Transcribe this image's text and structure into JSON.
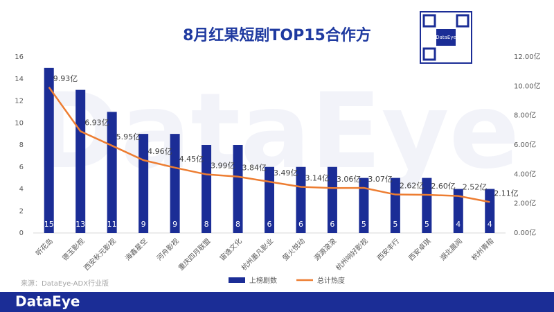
{
  "chart_data": {
    "type": "bar-line",
    "title": "8月红果短剧TOP15合作方",
    "brand": "DataEye",
    "source": "来源：DataEye-ADX行业版",
    "categories": [
      "听花岛",
      "德玉影视",
      "西安秋元影视",
      "海鑫星空",
      "河舟影视",
      "重庆四月联盟",
      "宙逸文化",
      "杭州墨凡影业",
      "萤火悦动",
      "源源滚滚",
      "杭州响好影视",
      "西安丰行",
      "西安卓琪",
      "湖北晨阅",
      "杭州青榕"
    ],
    "series": [
      {
        "name": "上榜剧数",
        "type": "bar",
        "color": "#1b2d96",
        "values": [
          15,
          13,
          11,
          9,
          9,
          8,
          8,
          6,
          6,
          6,
          5,
          5,
          5,
          4,
          4
        ]
      },
      {
        "name": "总计热度",
        "type": "line",
        "axis": "y2",
        "color": "#ed7d31",
        "values": [
          9.93,
          6.93,
          5.95,
          4.96,
          4.45,
          3.99,
          3.84,
          3.49,
          3.14,
          3.06,
          3.07,
          2.62,
          2.6,
          2.52,
          2.11
        ],
        "value_labels": [
          "9.93亿",
          "6.93亿",
          "5.95亿",
          "4.96亿",
          "4.45亿",
          "3.99亿",
          "3.84亿",
          "3.49亿",
          "3.14亿",
          "3.06亿",
          "3.07亿",
          "2.62亿",
          "2.60亿",
          "2.52亿",
          "2.11亿"
        ]
      }
    ],
    "ylim": [
      0,
      16
    ],
    "yticks": [
      0,
      2,
      4,
      6,
      8,
      10,
      12,
      14,
      16
    ],
    "y2lim": [
      0,
      12
    ],
    "y2ticks": [
      {
        "value": 0,
        "label": "0.00亿"
      },
      {
        "value": 2,
        "label": "2.00亿"
      },
      {
        "value": 4,
        "label": "4.00亿"
      },
      {
        "value": 6,
        "label": "6.00亿"
      },
      {
        "value": 8,
        "label": "8.00亿"
      },
      {
        "value": 10,
        "label": "10.00亿"
      },
      {
        "value": 12,
        "label": "12.00亿"
      }
    ],
    "grid": false,
    "legend": "bottom"
  }
}
